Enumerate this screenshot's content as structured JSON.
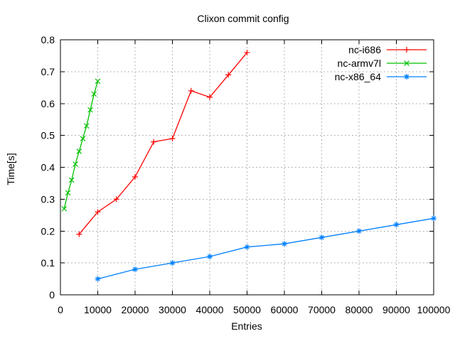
{
  "window": {
    "background": "#ffffff"
  },
  "chart_data": {
    "type": "line",
    "title": "Clixon commit config",
    "xlabel": "Entries",
    "ylabel": "Time[s]",
    "xlim": [
      0,
      100000
    ],
    "ylim": [
      0,
      0.8
    ],
    "x_ticks": [
      0,
      10000,
      20000,
      30000,
      40000,
      50000,
      60000,
      70000,
      80000,
      90000,
      100000
    ],
    "x_tick_labels": [
      "0",
      "10000",
      "20000",
      "30000",
      "40000",
      "50000",
      "60000",
      "70000",
      "80000",
      "90000",
      "100000"
    ],
    "y_ticks": [
      0,
      0.1,
      0.2,
      0.3,
      0.4,
      0.5,
      0.6,
      0.7,
      0.8
    ],
    "y_tick_labels": [
      "0",
      "0.1",
      "0.2",
      "0.3",
      "0.4",
      "0.5",
      "0.6",
      "0.7",
      "0.8"
    ],
    "grid": true,
    "grid_color": "#b5b5b5",
    "axis_color": "#000000",
    "text_color": "#000000",
    "legend_position": "top-right-inside",
    "series": [
      {
        "name": "nc-i686",
        "color": "#ff0000",
        "marker": "plus",
        "points": [
          [
            5000,
            0.19
          ],
          [
            10000,
            0.26
          ],
          [
            15000,
            0.3
          ],
          [
            20000,
            0.37
          ],
          [
            25000,
            0.48
          ],
          [
            30000,
            0.49
          ],
          [
            35000,
            0.64
          ],
          [
            40000,
            0.62
          ],
          [
            45000,
            0.69
          ],
          [
            50000,
            0.76
          ]
        ]
      },
      {
        "name": "nc-armv7l",
        "color": "#00c000",
        "marker": "cross",
        "points": [
          [
            1000,
            0.27
          ],
          [
            2000,
            0.32
          ],
          [
            3000,
            0.36
          ],
          [
            4000,
            0.41
          ],
          [
            5000,
            0.45
          ],
          [
            6000,
            0.49
          ],
          [
            7000,
            0.53
          ],
          [
            8000,
            0.58
          ],
          [
            9000,
            0.63
          ],
          [
            10000,
            0.67
          ]
        ]
      },
      {
        "name": "nc-x86_64",
        "color": "#0080ff",
        "marker": "asterisk",
        "points": [
          [
            10000,
            0.05
          ],
          [
            20000,
            0.08
          ],
          [
            30000,
            0.1
          ],
          [
            40000,
            0.12
          ],
          [
            50000,
            0.15
          ],
          [
            60000,
            0.16
          ],
          [
            70000,
            0.18
          ],
          [
            80000,
            0.2
          ],
          [
            90000,
            0.22
          ],
          [
            100000,
            0.24
          ]
        ]
      }
    ]
  }
}
